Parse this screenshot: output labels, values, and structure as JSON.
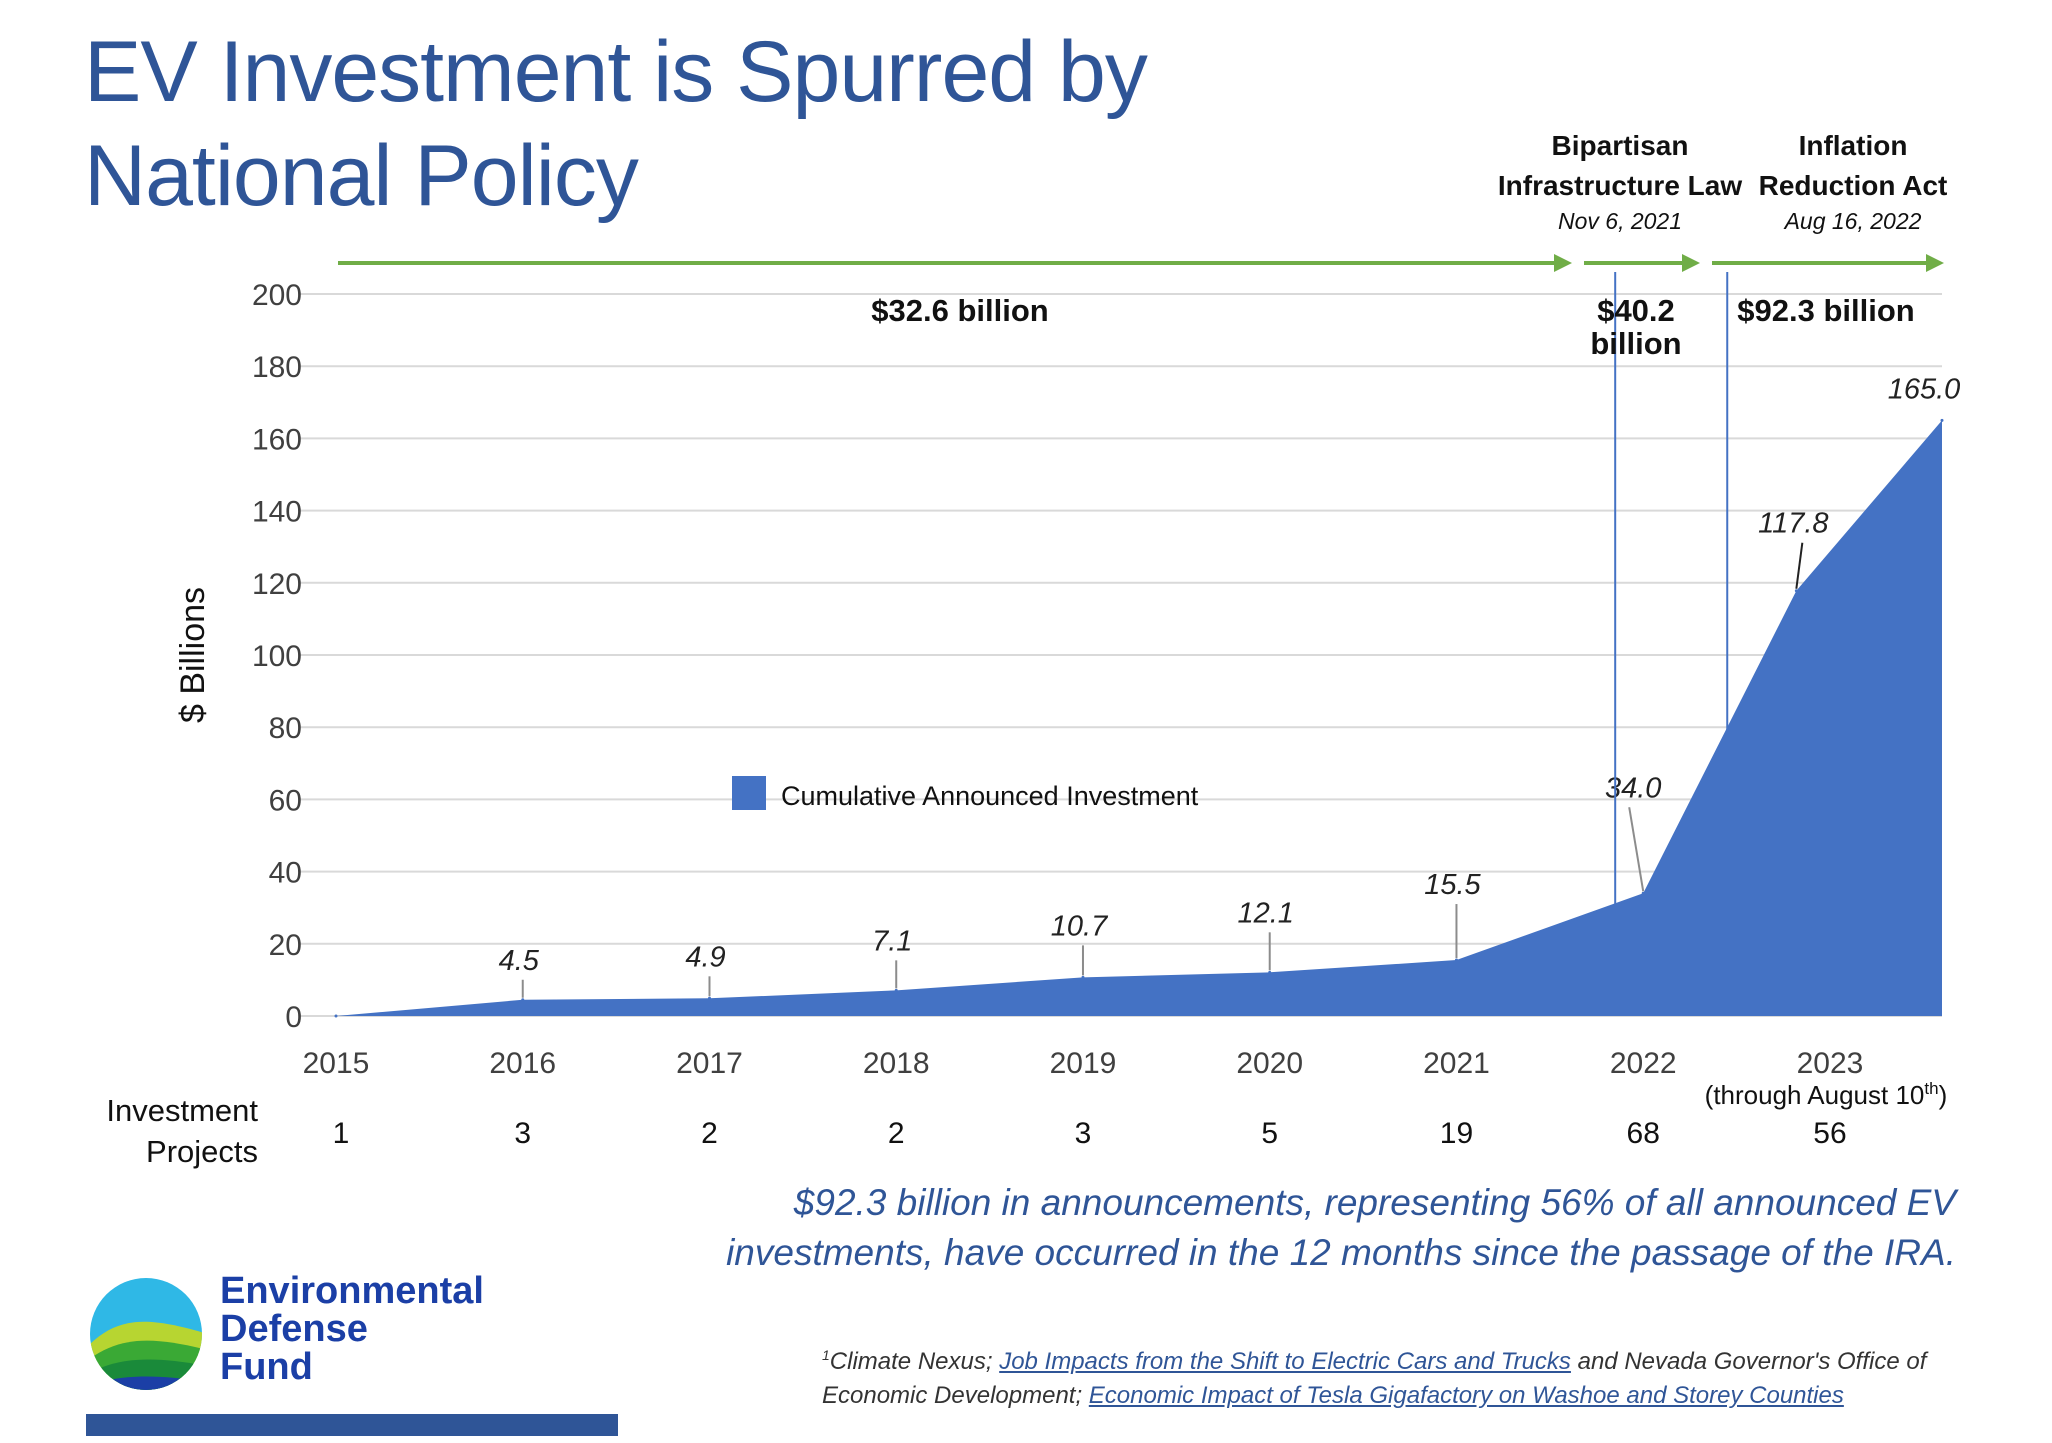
{
  "title": {
    "line1": "EV Investment is Spurred by",
    "line2": "National Policy"
  },
  "chart_data": {
    "type": "area",
    "title": "",
    "ylabel": "$ Billions",
    "xlabel": "",
    "ylim": [
      0,
      200
    ],
    "yticks": [
      0,
      20,
      40,
      60,
      80,
      100,
      120,
      140,
      160,
      180,
      200
    ],
    "x_tick_labels": [
      "2015",
      "2016",
      "2017",
      "2018",
      "2019",
      "2020",
      "2021",
      "2022",
      "2023"
    ],
    "x_note": "(through August 10",
    "x_note_sup": "th",
    "x_note_end": ")",
    "series": [
      {
        "name": "Cumulative Announced Investment",
        "color": "#4472c4",
        "x": [
          2015.0,
          2016.0,
          2017.0,
          2018.0,
          2019.0,
          2020.0,
          2021.0,
          2022.0,
          2022.82,
          2023.6
        ],
        "values": [
          0,
          4.5,
          4.9,
          7.1,
          10.7,
          12.1,
          15.5,
          34.0,
          117.8,
          165.0
        ]
      }
    ],
    "point_labels": [
      {
        "x": 2016.0,
        "value": 4.5,
        "text": "4.5"
      },
      {
        "x": 2017.0,
        "value": 4.9,
        "text": "4.9"
      },
      {
        "x": 2018.0,
        "value": 7.1,
        "text": "7.1"
      },
      {
        "x": 2019.0,
        "value": 10.7,
        "text": "10.7"
      },
      {
        "x": 2020.0,
        "value": 12.1,
        "text": "12.1"
      },
      {
        "x": 2021.0,
        "value": 15.5,
        "text": "15.5"
      },
      {
        "x": 2022.0,
        "value": 34.0,
        "text": "34.0"
      },
      {
        "x": 2022.82,
        "value": 117.8,
        "text": "117.8"
      },
      {
        "x": 2023.6,
        "value": 165.0,
        "text": "165.0"
      }
    ],
    "legend": {
      "placement": "center-left",
      "label": "Cumulative Announced Investment"
    },
    "grid": true,
    "policy_events": [
      {
        "name": "Bipartisan",
        "name2": "Infrastructure Law",
        "date": "Nov 6, 2021",
        "x": 2021.85
      },
      {
        "name": "Inflation",
        "name2": "Reduction Act",
        "date": "Aug 16, 2022",
        "x": 2022.45
      }
    ],
    "period_totals": [
      {
        "label": "$32.6 billion",
        "line2": "",
        "from": 2015.0,
        "to": 2021.85
      },
      {
        "label": "$40.2",
        "line2": "billion",
        "from": 2021.85,
        "to": 2022.45
      },
      {
        "label": "$92.3 billion",
        "line2": "",
        "from": 2022.45,
        "to": 2023.6
      }
    ],
    "investment_projects": {
      "label_line1": "Investment",
      "label_line2": "Projects",
      "years": [
        "2015",
        "2016",
        "2017",
        "2018",
        "2019",
        "2020",
        "2021",
        "2022",
        "2023"
      ],
      "counts": [
        1,
        3,
        2,
        2,
        3,
        5,
        19,
        68,
        56
      ]
    },
    "colors": {
      "area": "#4472c4",
      "arrow": "#70ad47",
      "event_line": "#4472c4",
      "grid": "#d9d9d9"
    }
  },
  "summary": {
    "line1": "$92.3 billion in announcements, representing 56% of all announced EV",
    "line2": "investments, have occurred in the 12 months since the passage of the IRA."
  },
  "source": {
    "sup": "1",
    "part1": "Climate Nexus; ",
    "link1": "Job Impacts from the Shift to Electric Cars and Trucks",
    "part2": " and Nevada Governor's Office of",
    "part3": "Economic Development; ",
    "link2": "Economic Impact of Tesla Gigafactory on Washoe and Storey Counties"
  },
  "logo": {
    "line1": "Environmental",
    "line2": "Defense",
    "line3": "Fund"
  }
}
